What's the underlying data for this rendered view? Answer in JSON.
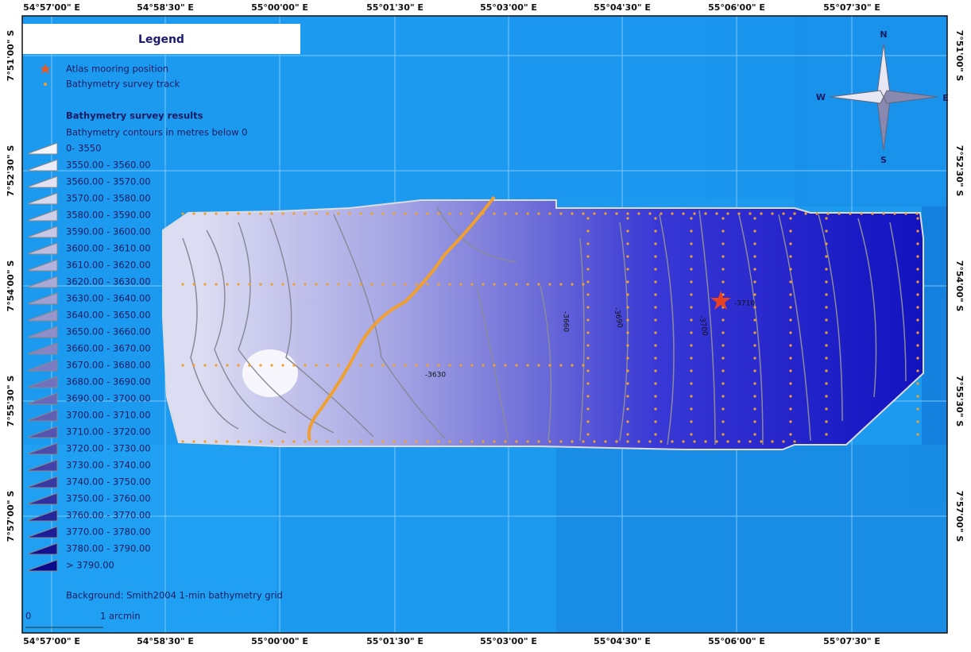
{
  "map": {
    "top_labels": [
      "54°57'00\" E",
      "54°58'30\" E",
      "55°00'00\" E",
      "55°01'30\" E",
      "55°03'00\" E",
      "55°04'30\" E",
      "55°06'00\" E",
      "55°07'30\" E"
    ],
    "bottom_labels": [
      "54°57'00\" E",
      "54°58'30\" E",
      "55°00'00\" E",
      "55°01'30\" E",
      "55°03'00\" E",
      "55°04'30\" E",
      "55°06'00\" E",
      "55°07'30\" E"
    ],
    "left_labels": [
      "7°51'00\" S",
      "7°52'30\" S",
      "7°54'00\" S",
      "7°55'30\" S",
      "7°57'00\" S"
    ],
    "right_labels": [
      "7°51'00\" S",
      "7°52'30\" S",
      "7°54'00\" S",
      "7°55'30\" S",
      "7°57'00\" S"
    ],
    "legend": {
      "title": "Legend",
      "items": [
        "Atlas mooring position",
        "Bathymetry survey track"
      ],
      "section_title": "Bathymetry survey results",
      "subtitle": "Bathymetry contours in metres below 0",
      "classes": [
        "0- 3550",
        "3550.00 - 3560.00",
        "3560.00 - 3570.00",
        "3570.00 - 3580.00",
        "3580.00 - 3590.00",
        "3590.00 - 3600.00",
        "3600.00 - 3610.00",
        "3610.00 - 3620.00",
        "3620.00 - 3630.00",
        "3630.00 - 3640.00",
        "3640.00 - 3650.00",
        "3650.00 - 3660.00",
        "3660.00 - 3670.00",
        "3670.00 - 3680.00",
        "3680.00 - 3690.00",
        "3690.00 - 3700.00",
        "3700.00 - 3710.00",
        "3710.00 - 3720.00",
        "3720.00 - 3730.00",
        "3730.00 - 3740.00",
        "3740.00 - 3750.00",
        "3750.00 - 3760.00",
        "3760.00 - 3770.00",
        "3770.00 - 3780.00",
        "3780.00 - 3790.00",
        "> 3790.00"
      ],
      "background_note": "Background: Smith2004 1-min bathymetry grid"
    },
    "scale_bar": [
      "0",
      "1 arcmin"
    ],
    "compass": {
      "n": "N",
      "s": "S",
      "w": "W",
      "e": "E"
    },
    "contour_labels": [
      "-3630",
      "-3660",
      "-3690",
      "-3700",
      "-3710"
    ]
  }
}
